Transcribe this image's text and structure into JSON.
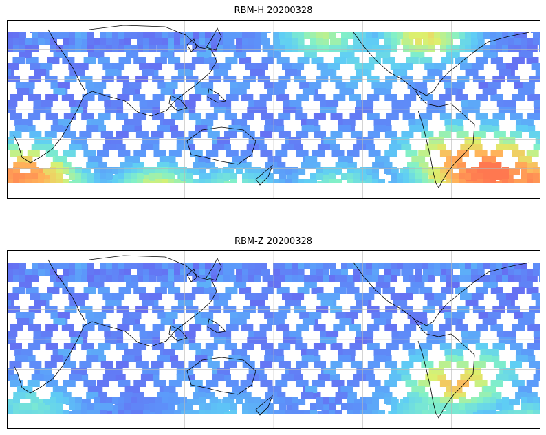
{
  "panels": [
    {
      "id": "top",
      "title": "RBM-H 20200328",
      "hot_regions": [
        {
          "lon": 0.02,
          "lat": 0.86,
          "heat": 0.92,
          "r": 0.1
        },
        {
          "lon": 0.07,
          "lat": 0.9,
          "heat": 0.75,
          "r": 0.08
        },
        {
          "lon": 0.28,
          "lat": 0.93,
          "heat": 0.7,
          "r": 0.08
        },
        {
          "lon": 0.42,
          "lat": 0.95,
          "heat": 0.6,
          "r": 0.08
        },
        {
          "lon": 0.62,
          "lat": 0.92,
          "heat": 0.55,
          "r": 0.08
        },
        {
          "lon": 0.9,
          "lat": 0.84,
          "heat": 1.0,
          "r": 0.12
        },
        {
          "lon": 0.85,
          "lat": 0.76,
          "heat": 0.85,
          "r": 0.1
        },
        {
          "lon": 0.98,
          "lat": 0.88,
          "heat": 0.92,
          "r": 0.08
        },
        {
          "lon": 0.78,
          "lat": 0.08,
          "heat": 0.72,
          "r": 0.08
        },
        {
          "lon": 0.59,
          "lat": 0.07,
          "heat": 0.62,
          "r": 0.08
        },
        {
          "lon": 0.68,
          "lat": 0.2,
          "heat": 0.45,
          "r": 0.1
        }
      ]
    },
    {
      "id": "bottom",
      "title": "RBM-Z 20200328",
      "hot_regions": [
        {
          "lon": 0.84,
          "lat": 0.72,
          "heat": 0.8,
          "r": 0.09
        },
        {
          "lon": 0.88,
          "lat": 0.65,
          "heat": 0.62,
          "r": 0.08
        },
        {
          "lon": 0.8,
          "lat": 0.9,
          "heat": 0.55,
          "r": 0.1
        },
        {
          "lon": 0.04,
          "lat": 0.86,
          "heat": 0.5,
          "r": 0.08
        },
        {
          "lon": 0.97,
          "lat": 0.95,
          "heat": 0.55,
          "r": 0.08
        },
        {
          "lon": 0.4,
          "lat": 0.95,
          "heat": 0.4,
          "r": 0.1
        }
      ]
    }
  ]
}
